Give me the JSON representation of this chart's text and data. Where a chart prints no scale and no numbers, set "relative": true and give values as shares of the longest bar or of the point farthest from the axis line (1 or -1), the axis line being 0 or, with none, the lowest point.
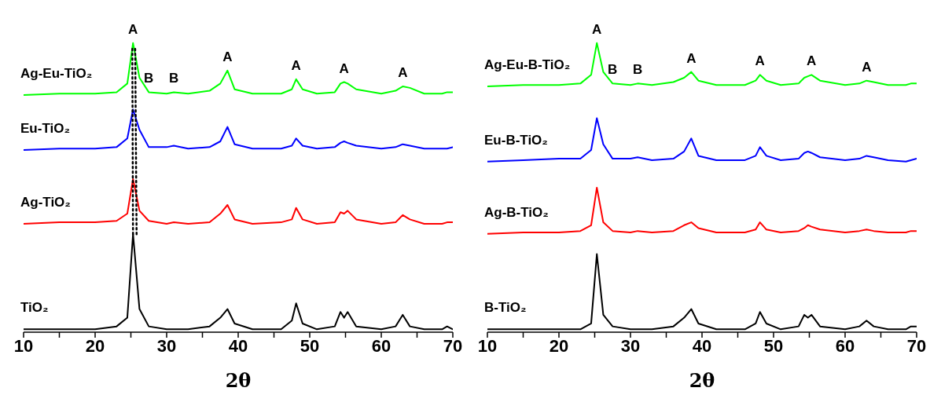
{
  "chart_data": [
    {
      "type": "line",
      "relative": true,
      "xlabel": "2θ",
      "xlim": [
        10,
        70
      ],
      "xticks": [
        10,
        {
          "value": 15,
          "label": null
        },
        20,
        {
          "value": 25,
          "label": null
        },
        30,
        {
          "value": 35,
          "label": null
        },
        40,
        {
          "value": 45,
          "label": null
        },
        50,
        {
          "value": 55,
          "label": null
        },
        60,
        {
          "value": 65,
          "label": null
        },
        70
      ],
      "grid": false,
      "legend": false,
      "marker": "none",
      "line_style": "solid",
      "x": [
        10,
        15,
        20,
        23,
        24.5,
        25.3,
        26.2,
        27.5,
        30,
        31,
        33,
        36,
        37.5,
        38.5,
        39.5,
        42,
        46,
        47.5,
        48.1,
        49,
        51,
        53.5,
        54.3,
        54.8,
        55.3,
        56.5,
        60,
        62,
        63,
        64,
        66,
        68.5,
        69.2,
        70
      ],
      "series": [
        {
          "name": "TiO₂",
          "color": "#000000",
          "values": [
            0.01,
            0.01,
            0.01,
            0.02,
            0.05,
            0.34,
            0.08,
            0.02,
            0.01,
            0.01,
            0.01,
            0.02,
            0.05,
            0.08,
            0.03,
            0.01,
            0.01,
            0.04,
            0.1,
            0.03,
            0.01,
            0.02,
            0.07,
            0.05,
            0.07,
            0.02,
            0.01,
            0.02,
            0.06,
            0.02,
            0.01,
            0.01,
            0.02,
            0.01
          ]
        },
        {
          "name": "Ag-TiO₂",
          "color": "#ff0000",
          "values": [
            0.375,
            0.38,
            0.38,
            0.385,
            0.41,
            0.53,
            0.42,
            0.385,
            0.375,
            0.38,
            0.375,
            0.38,
            0.41,
            0.44,
            0.39,
            0.375,
            0.38,
            0.39,
            0.43,
            0.39,
            0.375,
            0.38,
            0.415,
            0.41,
            0.42,
            0.39,
            0.375,
            0.38,
            0.405,
            0.39,
            0.375,
            0.375,
            0.38,
            0.38
          ]
        },
        {
          "name": "Eu-TiO₂",
          "color": "#0000ff",
          "values": [
            0.63,
            0.635,
            0.635,
            0.64,
            0.67,
            0.77,
            0.7,
            0.64,
            0.64,
            0.645,
            0.635,
            0.64,
            0.66,
            0.71,
            0.65,
            0.635,
            0.635,
            0.645,
            0.67,
            0.645,
            0.635,
            0.64,
            0.655,
            0.66,
            0.655,
            0.645,
            0.635,
            0.64,
            0.65,
            0.645,
            0.635,
            0.635,
            0.635,
            0.64
          ]
        },
        {
          "name": "Ag-Eu-TiO₂",
          "color": "#00ff00",
          "values": [
            0.82,
            0.825,
            0.825,
            0.83,
            0.86,
            1.0,
            0.88,
            0.83,
            0.825,
            0.83,
            0.825,
            0.835,
            0.86,
            0.905,
            0.84,
            0.825,
            0.825,
            0.84,
            0.875,
            0.84,
            0.825,
            0.83,
            0.86,
            0.865,
            0.86,
            0.84,
            0.825,
            0.835,
            0.85,
            0.845,
            0.825,
            0.825,
            0.83,
            0.83
          ]
        },
        {
          "type": "line",
          "line_style": "dotted",
          "color": "#000000",
          "x": [
            25.2,
            25.3
          ],
          "values": [
            0.98,
            0.33
          ]
        },
        {
          "type": "line",
          "line_style": "dotted",
          "color": "#000000",
          "x": [
            25.6,
            25.8
          ],
          "values": [
            0.98,
            0.33
          ]
        }
      ],
      "annotations": [
        {
          "text": "A",
          "x": 25.3,
          "y": 1.0
        },
        {
          "text": "B",
          "x": 27.5,
          "y": 0.83
        },
        {
          "text": "B",
          "x": 31,
          "y": 0.83
        },
        {
          "text": "A",
          "x": 38.5,
          "y": 0.905
        },
        {
          "text": "A",
          "x": 48.1,
          "y": 0.875
        },
        {
          "text": "A",
          "x": 54.8,
          "y": 0.865
        },
        {
          "text": "A",
          "x": 63,
          "y": 0.85
        }
      ]
    },
    {
      "type": "line",
      "relative": true,
      "xlabel": "2θ",
      "xlim": [
        10,
        70
      ],
      "xticks": [
        10,
        {
          "value": 15,
          "label": null
        },
        20,
        {
          "value": 25,
          "label": null
        },
        30,
        {
          "value": 35,
          "label": null
        },
        40,
        {
          "value": 45,
          "label": null
        },
        50,
        {
          "value": 55,
          "label": null
        },
        60,
        {
          "value": 65,
          "label": null
        },
        70
      ],
      "grid": false,
      "legend": false,
      "marker": "none",
      "line_style": "solid",
      "x": [
        10,
        15,
        20,
        23,
        24.5,
        25.3,
        26.2,
        27.5,
        30,
        31,
        33,
        36,
        37.5,
        38.5,
        39.5,
        42,
        46,
        47.5,
        48.1,
        49,
        51,
        53.5,
        54.3,
        54.8,
        55.3,
        56.5,
        60,
        62,
        63,
        64,
        66,
        68.5,
        69.2,
        70
      ],
      "series": [
        {
          "name": "B-TiO₂",
          "color": "#000000",
          "values": [
            0.01,
            0.01,
            0.01,
            0.01,
            0.03,
            0.27,
            0.06,
            0.02,
            0.01,
            0.01,
            0.01,
            0.02,
            0.05,
            0.08,
            0.03,
            0.01,
            0.01,
            0.03,
            0.07,
            0.03,
            0.01,
            0.02,
            0.06,
            0.05,
            0.06,
            0.02,
            0.01,
            0.02,
            0.04,
            0.02,
            0.01,
            0.01,
            0.02,
            0.02
          ]
        },
        {
          "name": "Ag-B-TiO₂",
          "color": "#ff0000",
          "values": [
            0.34,
            0.345,
            0.345,
            0.35,
            0.37,
            0.5,
            0.38,
            0.35,
            0.345,
            0.35,
            0.345,
            0.35,
            0.37,
            0.38,
            0.36,
            0.345,
            0.345,
            0.355,
            0.38,
            0.355,
            0.345,
            0.35,
            0.36,
            0.37,
            0.365,
            0.355,
            0.345,
            0.35,
            0.355,
            0.35,
            0.345,
            0.345,
            0.35,
            0.35
          ]
        },
        {
          "name": "Eu-B-TiO₂",
          "color": "#0000ff",
          "values": [
            0.59,
            0.595,
            0.6,
            0.6,
            0.63,
            0.74,
            0.65,
            0.6,
            0.6,
            0.605,
            0.595,
            0.6,
            0.625,
            0.67,
            0.61,
            0.595,
            0.595,
            0.61,
            0.64,
            0.61,
            0.595,
            0.6,
            0.62,
            0.625,
            0.62,
            0.605,
            0.595,
            0.6,
            0.61,
            0.605,
            0.595,
            0.59,
            0.595,
            0.6
          ]
        },
        {
          "name": "Ag-Eu-B-TiO₂",
          "color": "#00ff00",
          "values": [
            0.85,
            0.855,
            0.855,
            0.86,
            0.89,
            1.0,
            0.9,
            0.86,
            0.855,
            0.86,
            0.855,
            0.865,
            0.88,
            0.9,
            0.87,
            0.855,
            0.855,
            0.87,
            0.89,
            0.87,
            0.855,
            0.86,
            0.88,
            0.885,
            0.89,
            0.87,
            0.855,
            0.86,
            0.87,
            0.865,
            0.855,
            0.855,
            0.86,
            0.86
          ]
        }
      ],
      "annotations": [
        {
          "text": "A",
          "x": 25.3,
          "y": 1.0
        },
        {
          "text": "B",
          "x": 27.5,
          "y": 0.86
        },
        {
          "text": "B",
          "x": 31,
          "y": 0.86
        },
        {
          "text": "A",
          "x": 38.5,
          "y": 0.9
        },
        {
          "text": "A",
          "x": 48.1,
          "y": 0.89
        },
        {
          "text": "A",
          "x": 55.3,
          "y": 0.89
        },
        {
          "text": "A",
          "x": 63,
          "y": 0.87
        }
      ]
    }
  ]
}
